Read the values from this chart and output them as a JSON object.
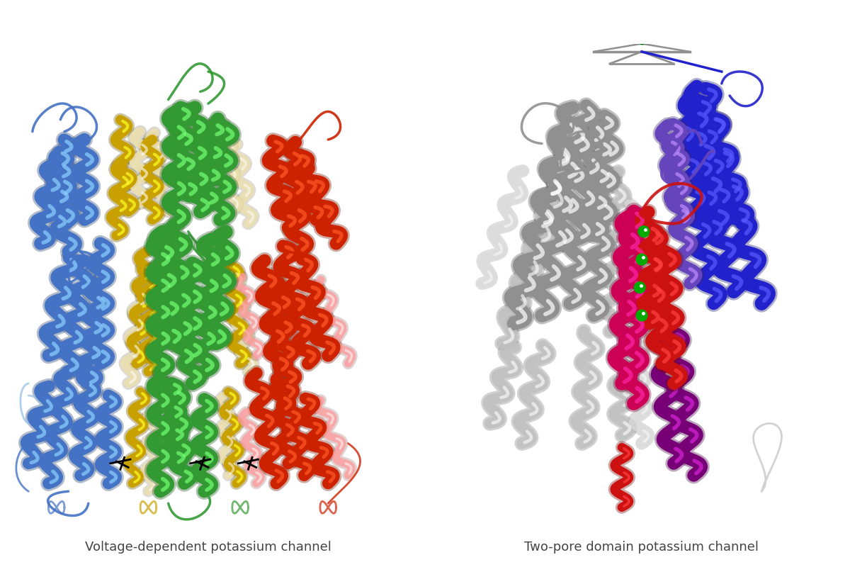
{
  "title_left": "Voltage-dependent potassium channel",
  "title_right": "Two-pore domain potassium channel",
  "title_fontsize": 13,
  "title_color": "#444444",
  "background_color": "#ffffff",
  "fig_width": 12.0,
  "fig_height": 8.0,
  "left_colors": {
    "blue": "#4472C4",
    "blue_light": "#9DC3E6",
    "green": "#339933",
    "red": "#CC2200",
    "red_light": "#FF9999",
    "yellow": "#C8A000",
    "yellow_light": "#EDE0AA",
    "black": "#111111"
  },
  "right_colors": {
    "gray": "#909090",
    "gray_light": "#C0C0C0",
    "gray_vlight": "#DCDCDC",
    "blue": "#2222CC",
    "purple_blue": "#6644BB",
    "purple": "#770077",
    "red": "#CC1111",
    "magenta": "#CC0055",
    "green": "#00AA00"
  }
}
